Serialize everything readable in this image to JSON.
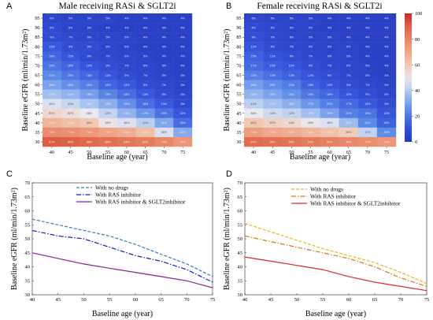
{
  "heatmaps": [
    {
      "letter": "A",
      "title": "Male receiving RASi & SGLT2i",
      "xlabel": "Baseline age (year)",
      "ylabel": "Baseline eGFR (ml/min/1.73m²)",
      "ages": [
        "40",
        "45",
        "50",
        "55",
        "60",
        "65",
        "70",
        "75"
      ],
      "egfr": [
        "95",
        "90",
        "85",
        "80",
        "75",
        "70",
        "65",
        "60",
        "55",
        "50",
        "45",
        "40",
        "35",
        "30"
      ],
      "cells": [
        [
          "6%",
          "5%",
          "5%",
          "5%",
          "4%",
          "4%",
          "4%",
          "4%"
        ],
        [
          "8%",
          "5%",
          "5%",
          "4%",
          "4%",
          "4%",
          "4%",
          "4%"
        ],
        [
          "9%",
          "7%",
          "6%",
          "5%",
          "5%",
          "4%",
          "4%",
          "4%"
        ],
        [
          "13%",
          "9%",
          "9%",
          "6%",
          "5%",
          "4%",
          "4%",
          "4%"
        ],
        [
          "16%",
          "12%",
          "8%",
          "7%",
          "6%",
          "5%",
          "4%",
          "4%"
        ],
        [
          "19%",
          "16%",
          "12%",
          "9%",
          "7%",
          "6%",
          "5%",
          "4%"
        ],
        [
          "24%",
          "20%",
          "16%",
          "12%",
          "9%",
          "7%",
          "5%",
          "4%"
        ],
        [
          "30%",
          "26%",
          "22%",
          "16%",
          "13%",
          "9%",
          "7%",
          "5%"
        ],
        [
          "37%",
          "34%",
          "29%",
          "23%",
          "18%",
          "13%",
          "9%",
          "6%"
        ],
        [
          "46%",
          "43%",
          "38%",
          "33%",
          "26%",
          "18%",
          "13%",
          "8%"
        ],
        [
          "54%",
          "52%",
          "48%",
          "42%",
          "34%",
          "27%",
          "19%",
          "12%"
        ],
        [
          "66%",
          "63%",
          "60%",
          "49%",
          "46%",
          "41%",
          "31%",
          "18%"
        ],
        [
          "78%",
          "77%",
          "74%",
          "71%",
          "68%",
          "63%",
          "46%",
          "32%"
        ],
        [
          "91%",
          "90%",
          "88%",
          "86%",
          "84%",
          "82%",
          "79%",
          "75%"
        ]
      ]
    },
    {
      "letter": "B",
      "title": "Female receiving RASi & SGLT2i",
      "xlabel": "Baseline age (year)",
      "ylabel": "Baseline eGFR (ml/min/1.73m²)",
      "ages": [
        "40",
        "45",
        "50",
        "55",
        "60",
        "65",
        "70",
        "75"
      ],
      "egfr": [
        "95",
        "90",
        "85",
        "80",
        "75",
        "70",
        "65",
        "60",
        "55",
        "50",
        "45",
        "40",
        "35",
        "30"
      ],
      "cells": [
        [
          "6%",
          "5%",
          "5%",
          "5%",
          "4%",
          "4%",
          "4%",
          "4%"
        ],
        [
          "8%",
          "6%",
          "5%",
          "5%",
          "4%",
          "4%",
          "4%",
          "4%"
        ],
        [
          "9%",
          "7%",
          "6%",
          "5%",
          "5%",
          "4%",
          "4%",
          "4%"
        ],
        [
          "12%",
          "8%",
          "7%",
          "6%",
          "5%",
          "5%",
          "4%",
          "4%"
        ],
        [
          "15%",
          "11%",
          "9%",
          "7%",
          "6%",
          "5%",
          "4%",
          "4%"
        ],
        [
          "17%",
          "14%",
          "12%",
          "9%",
          "7%",
          "6%",
          "5%",
          "4%"
        ],
        [
          "22%",
          "18%",
          "15%",
          "12%",
          "9%",
          "7%",
          "5%",
          "4%"
        ],
        [
          "29%",
          "25%",
          "21%",
          "15%",
          "12%",
          "9%",
          "7%",
          "5%"
        ],
        [
          "34%",
          "30%",
          "26%",
          "20%",
          "16%",
          "12%",
          "9%",
          "6%"
        ],
        [
          "41%",
          "37%",
          "33%",
          "27%",
          "22%",
          "17%",
          "13%",
          "9%"
        ],
        [
          "48%",
          "44%",
          "42%",
          "37%",
          "30%",
          "22%",
          "19%",
          "12%"
        ],
        [
          "60%",
          "57%",
          "54%",
          "49%",
          "46%",
          "36%",
          "24%",
          "15%"
        ],
        [
          "73%",
          "70%",
          "68%",
          "65%",
          "62%",
          "58%",
          "42%",
          "25%"
        ],
        [
          "87%",
          "86%",
          "85%",
          "83%",
          "81%",
          "79%",
          "77%",
          "75%"
        ]
      ]
    }
  ],
  "colorbar": {
    "ticks": [
      "0",
      "20",
      "40",
      "60",
      "80",
      "100"
    ],
    "min": 0,
    "max": 100
  },
  "lines": [
    {
      "letter": "C",
      "xlabel": "Baseline age (year)",
      "ylabel": "Baseline eGFR (ml/min/1.73m²)",
      "xticks": [
        "40",
        "45",
        "50",
        "55",
        "60",
        "65",
        "70",
        "75"
      ],
      "yticks": [
        "30",
        "35",
        "40",
        "45",
        "50",
        "55",
        "60",
        "65",
        "70"
      ],
      "legend": [
        "With no drugs",
        "With RAS inhibitor",
        "With RAS inhibitor & SGLT2inhibitor"
      ]
    },
    {
      "letter": "D",
      "xlabel": "Baseline age (year)",
      "ylabel": "Baseline eGFR (ml/min/1.73m²)",
      "xticks": [
        "40",
        "45",
        "50",
        "55",
        "60",
        "65",
        "70",
        "75"
      ],
      "yticks": [
        "30",
        "35",
        "40",
        "45",
        "50",
        "55",
        "60",
        "65",
        "70"
      ],
      "legend": [
        "With no drugs",
        "With RAS inhibitor",
        "With RAS inhibitor & SGLT2inhibitor"
      ]
    }
  ],
  "chart_data": [
    {
      "type": "heatmap",
      "title": "Male receiving RASi & SGLT2i",
      "xlabel": "Baseline age (year)",
      "ylabel": "Baseline eGFR (ml/min/1.73m²)",
      "x": [
        40,
        45,
        50,
        55,
        60,
        65,
        70,
        75
      ],
      "y": [
        95,
        90,
        85,
        80,
        75,
        70,
        65,
        60,
        55,
        50,
        45,
        40,
        35,
        30
      ],
      "values": [
        [
          6,
          5,
          5,
          5,
          4,
          4,
          4,
          4
        ],
        [
          8,
          5,
          5,
          4,
          4,
          4,
          4,
          4
        ],
        [
          9,
          7,
          6,
          5,
          5,
          4,
          4,
          4
        ],
        [
          13,
          9,
          9,
          6,
          5,
          4,
          4,
          4
        ],
        [
          16,
          12,
          8,
          7,
          6,
          5,
          4,
          4
        ],
        [
          19,
          16,
          12,
          9,
          7,
          6,
          5,
          4
        ],
        [
          24,
          20,
          16,
          12,
          9,
          7,
          5,
          4
        ],
        [
          30,
          26,
          22,
          16,
          13,
          9,
          7,
          5
        ],
        [
          37,
          34,
          29,
          23,
          18,
          13,
          9,
          6
        ],
        [
          46,
          43,
          38,
          33,
          26,
          18,
          13,
          8
        ],
        [
          54,
          52,
          48,
          42,
          34,
          27,
          19,
          12
        ],
        [
          66,
          63,
          60,
          49,
          46,
          41,
          31,
          18
        ],
        [
          78,
          77,
          74,
          71,
          68,
          63,
          46,
          32
        ],
        [
          91,
          90,
          88,
          86,
          84,
          82,
          79,
          75
        ]
      ],
      "colorbar": [
        0,
        100
      ]
    },
    {
      "type": "heatmap",
      "title": "Female receiving RASi & SGLT2i",
      "xlabel": "Baseline age (year)",
      "ylabel": "Baseline eGFR (ml/min/1.73m²)",
      "x": [
        40,
        45,
        50,
        55,
        60,
        65,
        70,
        75
      ],
      "y": [
        95,
        90,
        85,
        80,
        75,
        70,
        65,
        60,
        55,
        50,
        45,
        40,
        35,
        30
      ],
      "values": [
        [
          6,
          5,
          5,
          5,
          4,
          4,
          4,
          4
        ],
        [
          8,
          6,
          5,
          5,
          4,
          4,
          4,
          4
        ],
        [
          9,
          7,
          6,
          5,
          5,
          4,
          4,
          4
        ],
        [
          12,
          8,
          7,
          6,
          5,
          5,
          4,
          4
        ],
        [
          15,
          11,
          9,
          7,
          6,
          5,
          4,
          4
        ],
        [
          17,
          14,
          12,
          9,
          7,
          6,
          5,
          4
        ],
        [
          22,
          18,
          15,
          12,
          9,
          7,
          5,
          4
        ],
        [
          29,
          25,
          21,
          15,
          12,
          9,
          7,
          5
        ],
        [
          34,
          30,
          26,
          20,
          16,
          12,
          9,
          6
        ],
        [
          41,
          37,
          33,
          27,
          22,
          17,
          13,
          9
        ],
        [
          48,
          44,
          42,
          37,
          30,
          22,
          19,
          12
        ],
        [
          60,
          57,
          54,
          49,
          46,
          36,
          24,
          15
        ],
        [
          73,
          70,
          68,
          65,
          62,
          58,
          42,
          25
        ],
        [
          87,
          86,
          85,
          83,
          81,
          79,
          77,
          75
        ]
      ],
      "colorbar": [
        0,
        100
      ]
    },
    {
      "type": "line",
      "xlabel": "Baseline age (year)",
      "ylabel": "Baseline eGFR (ml/min/1.73m²)",
      "xlim": [
        40,
        75
      ],
      "ylim": [
        30,
        70
      ],
      "series": [
        {
          "name": "With no drugs",
          "color": "#2b7fc9",
          "dash": "4,2",
          "x": [
            40,
            45,
            50,
            55,
            60,
            65,
            70,
            75
          ],
          "y": [
            57,
            55,
            53,
            51,
            48,
            44.5,
            41,
            36.5
          ]
        },
        {
          "name": "With RAS inhibitor",
          "color": "#1414c8",
          "dash": "6,2,1.5,2",
          "x": [
            40,
            45,
            50,
            55,
            60,
            65,
            70,
            75
          ],
          "y": [
            53,
            51,
            50,
            47,
            44,
            42,
            39,
            34.5
          ]
        },
        {
          "name": "With RAS inhibitor & SGLT2inhibitor",
          "color": "#8e1a9e",
          "dash": "",
          "x": [
            40,
            45,
            50,
            55,
            60,
            65,
            70,
            75
          ],
          "y": [
            45,
            43,
            41,
            39.5,
            38,
            36.5,
            35,
            32.5
          ]
        }
      ]
    },
    {
      "type": "line",
      "xlabel": "Baseline age (year)",
      "ylabel": "Baseline eGFR (ml/min/1.73m²)",
      "xlim": [
        40,
        75
      ],
      "ylim": [
        30,
        70
      ],
      "series": [
        {
          "name": "With no drugs",
          "color": "#f2b11c",
          "dash": "4,2",
          "x": [
            40,
            45,
            50,
            55,
            60,
            65,
            70,
            75
          ],
          "y": [
            55.5,
            52.5,
            49.5,
            46.5,
            44,
            41.5,
            38,
            34
          ]
        },
        {
          "name": "With RAS inhibitor",
          "color": "#d67b12",
          "dash": "6,2,1.5,2",
          "x": [
            40,
            45,
            50,
            55,
            60,
            65,
            70,
            75
          ],
          "y": [
            51,
            49,
            47,
            45,
            43,
            40,
            36,
            33
          ]
        },
        {
          "name": "With RAS inhibitor & SGLT2inhibitor",
          "color": "#e02626",
          "dash": "",
          "x": [
            40,
            45,
            50,
            55,
            60,
            65,
            70,
            75
          ],
          "y": [
            43.5,
            42,
            40.5,
            39,
            36.5,
            34.5,
            33,
            31.5
          ]
        }
      ]
    }
  ]
}
